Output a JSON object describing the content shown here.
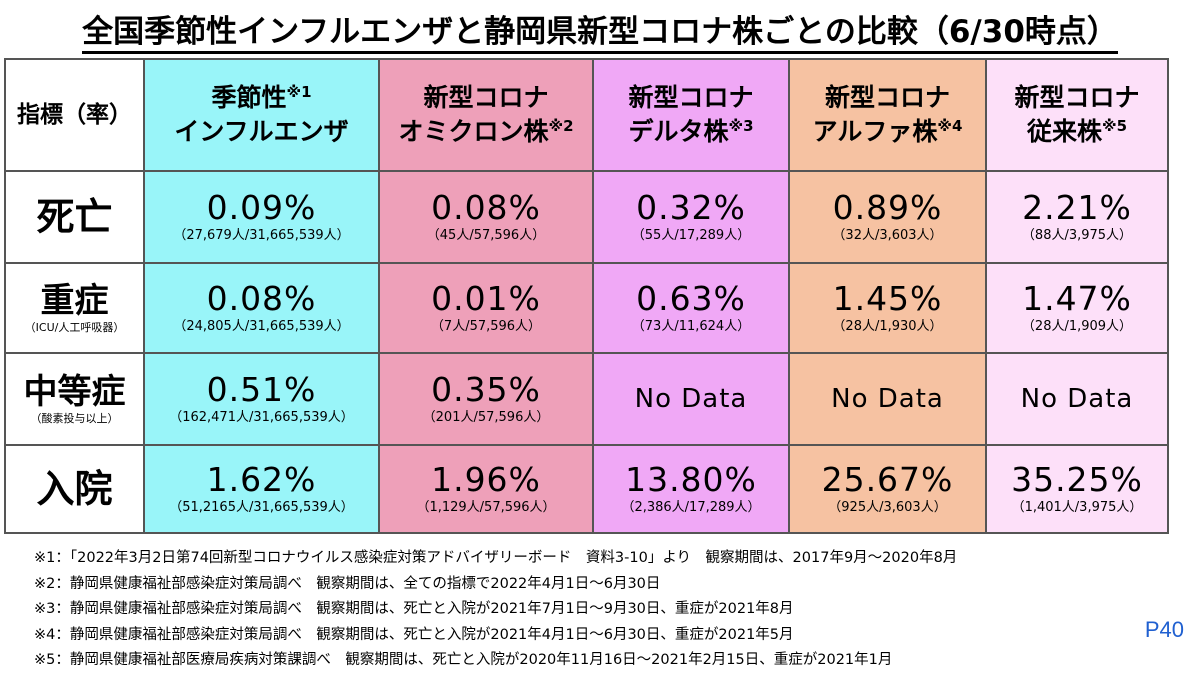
{
  "title": "全国季節性インフルエンザと静岡県新型コロナ株ごとの比較（6/30時点）",
  "header": {
    "corner": "指標（率）",
    "columns": [
      {
        "line1": "季節性",
        "note1": "※1",
        "line2": "インフルエンザ",
        "note2": ""
      },
      {
        "line1": "新型コロナ",
        "note1": "",
        "line2": "オミクロン株",
        "note2": "※2"
      },
      {
        "line1": "新型コロナ",
        "note1": "",
        "line2": "デルタ株",
        "note2": "※3"
      },
      {
        "line1": "新型コロナ",
        "note1": "",
        "line2": "アルファ株",
        "note2": "※4"
      },
      {
        "line1": "新型コロナ",
        "note1": "",
        "line2": "従来株",
        "note2": "※5"
      }
    ]
  },
  "rows": [
    {
      "label": "死亡",
      "sublabel": "",
      "cells": [
        {
          "pct": "0.09%",
          "count": "（27,679人/31,665,539人）"
        },
        {
          "pct": "0.08%",
          "count": "（45人/57,596人）"
        },
        {
          "pct": "0.32%",
          "count": "（55人/17,289人）"
        },
        {
          "pct": "0.89%",
          "count": "（32人/3,603人）"
        },
        {
          "pct": "2.21%",
          "count": "（88人/3,975人）"
        }
      ]
    },
    {
      "label": "重症",
      "sublabel": "（ICU/人工呼吸器）",
      "cells": [
        {
          "pct": "0.08%",
          "count": "（24,805人/31,665,539人）"
        },
        {
          "pct": "0.01%",
          "count": "（7人/57,596人）"
        },
        {
          "pct": "0.63%",
          "count": "（73人/11,624人）"
        },
        {
          "pct": "1.45%",
          "count": "（28人/1,930人）"
        },
        {
          "pct": "1.47%",
          "count": "（28人/1,909人）"
        }
      ]
    },
    {
      "label": "中等症",
      "sublabel": "（酸素投与以上）",
      "cells": [
        {
          "pct": "0.51%",
          "count": "（162,471人/31,665,539人）"
        },
        {
          "pct": "0.35%",
          "count": "（201人/57,596人）"
        },
        {
          "pct": "No Data",
          "count": ""
        },
        {
          "pct": "No Data",
          "count": ""
        },
        {
          "pct": "No Data",
          "count": ""
        }
      ]
    },
    {
      "label": "入院",
      "sublabel": "",
      "cells": [
        {
          "pct": "1.62%",
          "count": "（51,2165人/31,665,539人）"
        },
        {
          "pct": "1.96%",
          "count": "（1,129人/57,596人）"
        },
        {
          "pct": "13.80%",
          "count": "（2,386人/17,289人）"
        },
        {
          "pct": "25.67%",
          "count": "（925人/3,603人）"
        },
        {
          "pct": "35.25%",
          "count": "（1,401人/3,975人）"
        }
      ]
    }
  ],
  "footnotes": [
    "※1：「2022年3月2日第74回新型コロナウイルス感染症対策アドバイザリーボード　資料3-10」より　観察期間は、2017年9月～2020年8月",
    "※2：静岡県健康福祉部感染症対策局調べ　観察期間は、全ての指標で2022年4月1日～6月30日",
    "※3：静岡県健康福祉部感染症対策局調べ　観察期間は、死亡と入院が2021年7月1日～9月30日、重症が2021年8月",
    "※4：静岡県健康福祉部感染症対策局調べ　観察期間は、死亡と入院が2021年4月1日～6月30日、重症が2021年5月",
    "※5：静岡県健康福祉部医療局疾病対策課調べ　観察期間は、死亡と入院が2020年11月16日～2021年2月15日、重症が2021年1月"
  ],
  "page_number": "P40",
  "colors": {
    "col1": "#99f5f9",
    "col2": "#eea0b9",
    "col3": "#f0a8f6",
    "col4": "#f6c2a2",
    "col5": "#fde0f9",
    "page_number": "#2060d0"
  }
}
